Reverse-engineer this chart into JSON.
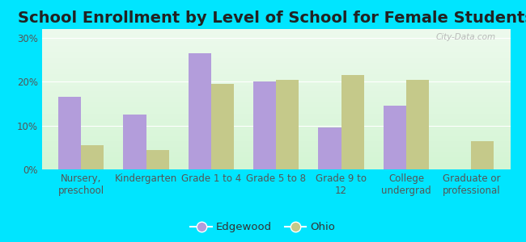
{
  "title": "School Enrollment by Level of School for Female Students",
  "categories": [
    "Nursery,\npreschool",
    "Kindergarten",
    "Grade 1 to 4",
    "Grade 5 to 8",
    "Grade 9 to\n12",
    "College\nundergrad",
    "Graduate or\nprofessional"
  ],
  "edgewood_values": [
    16.5,
    12.5,
    26.5,
    20.0,
    9.5,
    14.5,
    0.0
  ],
  "ohio_values": [
    5.5,
    4.5,
    19.5,
    20.5,
    21.5,
    20.5,
    6.5
  ],
  "edgewood_color": "#b39ddb",
  "ohio_color": "#c5c98a",
  "background_outer": "#00e5ff",
  "background_inner_top": "#edfaed",
  "background_inner_bottom": "#d4f5d4",
  "ylim": [
    0,
    32
  ],
  "yticks": [
    0,
    10,
    20,
    30
  ],
  "ytick_labels": [
    "0%",
    "10%",
    "20%",
    "30%"
  ],
  "title_fontsize": 14,
  "tick_fontsize": 8.5,
  "legend_labels": [
    "Edgewood",
    "Ohio"
  ],
  "watermark": "City-Data.com"
}
